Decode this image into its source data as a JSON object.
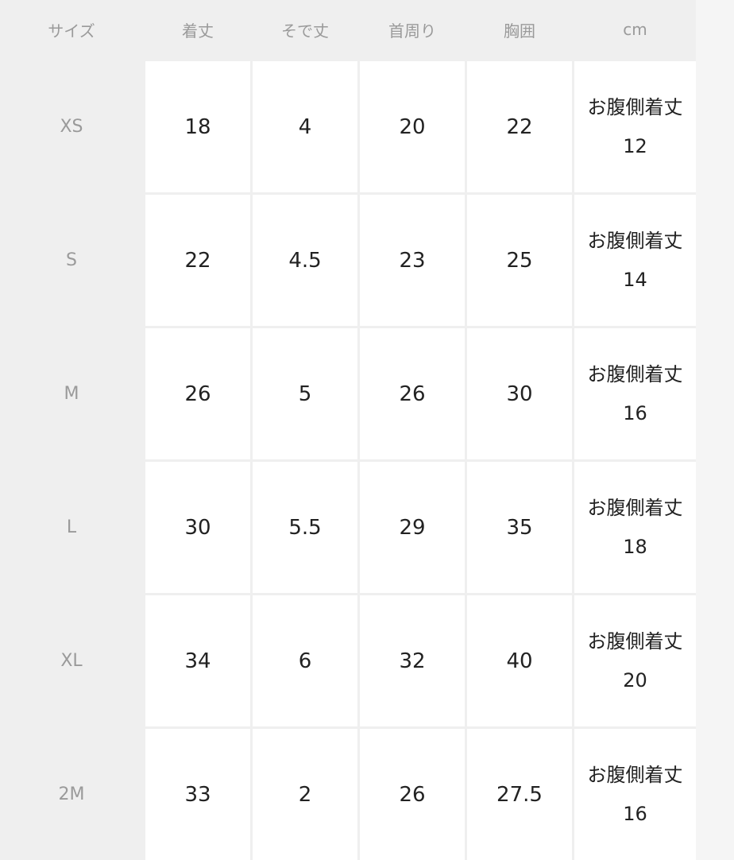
{
  "headers": [
    "サイズ",
    "着丈",
    "そで丈",
    "首周り",
    "胸囲",
    "cm"
  ],
  "rows": [
    {
      "size": "XS",
      "values": [
        "18",
        "4",
        "20",
        "22"
      ],
      "note_label": "お腹側着丈",
      "note_value": "12"
    },
    {
      "size": "S",
      "values": [
        "22",
        "4.5",
        "23",
        "25"
      ],
      "note_label": "お腹側着丈",
      "note_value": "14"
    },
    {
      "size": "M",
      "values": [
        "26",
        "5",
        "26",
        "30"
      ],
      "note_label": "お腹側着丈",
      "note_value": "16"
    },
    {
      "size": "L",
      "values": [
        "30",
        "5.5",
        "29",
        "35"
      ],
      "note_label": "お腹側着丈",
      "note_value": "18"
    },
    {
      "size": "XL",
      "values": [
        "34",
        "6",
        "32",
        "40"
      ],
      "note_label": "お腹側着丈",
      "note_value": "20"
    },
    {
      "size": "2M",
      "values": [
        "33",
        "2",
        "26",
        "27.5"
      ],
      "note_label": "お腹側着丈",
      "note_value": "16"
    }
  ]
}
